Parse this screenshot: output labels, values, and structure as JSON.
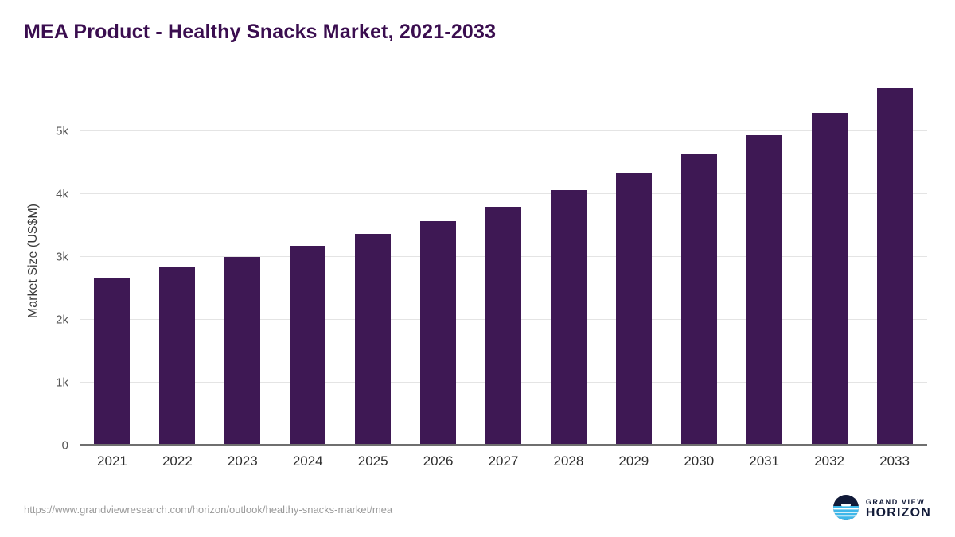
{
  "header": {
    "title": "MEA Product - Healthy Snacks Market, 2021-2033"
  },
  "chart_data": {
    "type": "bar",
    "title": "MEA Product - Healthy Snacks Market, 2021-2033",
    "categories": [
      "2021",
      "2022",
      "2023",
      "2024",
      "2025",
      "2026",
      "2027",
      "2028",
      "2029",
      "2030",
      "2031",
      "2032",
      "2033"
    ],
    "values": [
      2670,
      2850,
      3000,
      3170,
      3370,
      3570,
      3795,
      4060,
      4330,
      4630,
      4930,
      5290,
      5680
    ],
    "xlabel": "",
    "ylabel": "Market Size (US$M)",
    "ylim": [
      0,
      5820
    ],
    "yticks": [
      {
        "value": 0,
        "label": "0"
      },
      {
        "value": 1000,
        "label": "1k"
      },
      {
        "value": 2000,
        "label": "2k"
      },
      {
        "value": 3000,
        "label": "3k"
      },
      {
        "value": 4000,
        "label": "4k"
      },
      {
        "value": 5000,
        "label": "5k"
      }
    ],
    "grid": true,
    "legend": false
  },
  "footer": {
    "source_url": "https://www.grandviewresearch.com/horizon/outlook/healthy-snacks-market/mea",
    "logo": {
      "top": "GRAND VIEW",
      "bottom": "HORIZON"
    }
  },
  "colors": {
    "bar_color": "#3e1854",
    "title_color": "#3a0d4f",
    "logo_blue": "#3eb7e9",
    "logo_navy": "#111a38"
  }
}
